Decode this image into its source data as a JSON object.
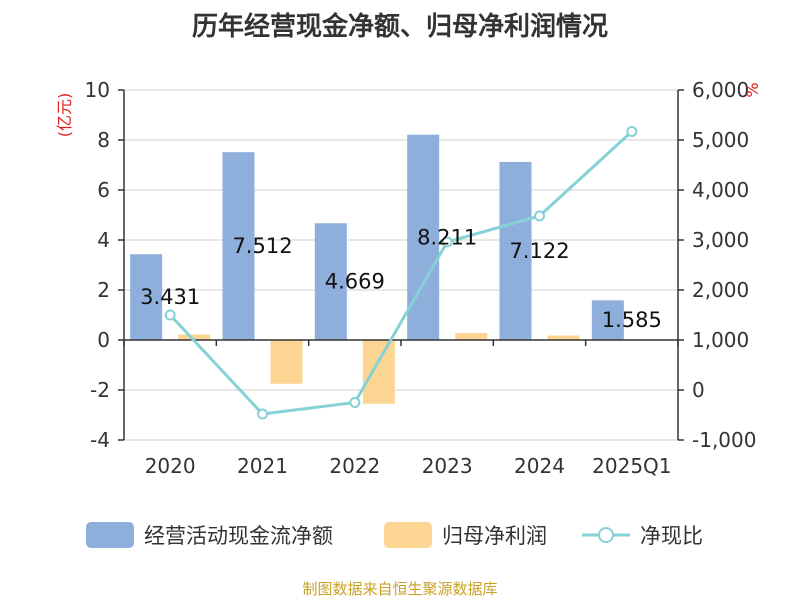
{
  "title": "历年经营现金净额、归母净利润情况",
  "source_note": "制图数据来自恒生聚源数据库",
  "colors": {
    "bar_cash": "#8eaedb",
    "bar_profit": "#fdd593",
    "line": "#86d1d6",
    "unit": "#e0201e",
    "axis": "#333333",
    "grid": "#d0d0d0"
  },
  "chart_data": {
    "type": "bar",
    "categories": [
      "2020",
      "2021",
      "2022",
      "2023",
      "2024",
      "2025Q1"
    ],
    "series": [
      {
        "name": "经营活动现金流净额",
        "type": "bar",
        "axis": "left",
        "values": [
          3.431,
          7.512,
          4.669,
          8.211,
          7.122,
          1.585
        ],
        "data_labels": [
          "3.431",
          "7.512",
          "4.669",
          "8.211",
          "7.122",
          "1.585"
        ]
      },
      {
        "name": "归母净利润",
        "type": "bar",
        "axis": "left",
        "values": [
          0.22,
          -1.75,
          -2.55,
          0.28,
          0.18,
          null
        ]
      },
      {
        "name": "净现比",
        "type": "line",
        "axis": "right",
        "values": [
          1500,
          -480,
          -250,
          2960,
          3480,
          5170
        ]
      }
    ],
    "y_left": {
      "unit": "(亿元)",
      "ylim": [
        -4,
        10
      ],
      "ticks": [
        10,
        8,
        6,
        4,
        2,
        0,
        -2,
        -4
      ],
      "tick_labels": [
        "10",
        "8",
        "6",
        "4",
        "2",
        "0",
        "-2",
        "-4"
      ]
    },
    "y_right": {
      "unit": "%",
      "ylim": [
        -1000,
        6000
      ],
      "ticks": [
        6000,
        5000,
        4000,
        3000,
        2000,
        1000,
        0,
        -1000
      ],
      "tick_labels": [
        "6,000",
        "5,000",
        "4,000",
        "3,000",
        "2,000",
        "1,000",
        "0",
        "-1,000"
      ]
    },
    "grid": true,
    "legend_position": "bottom"
  }
}
